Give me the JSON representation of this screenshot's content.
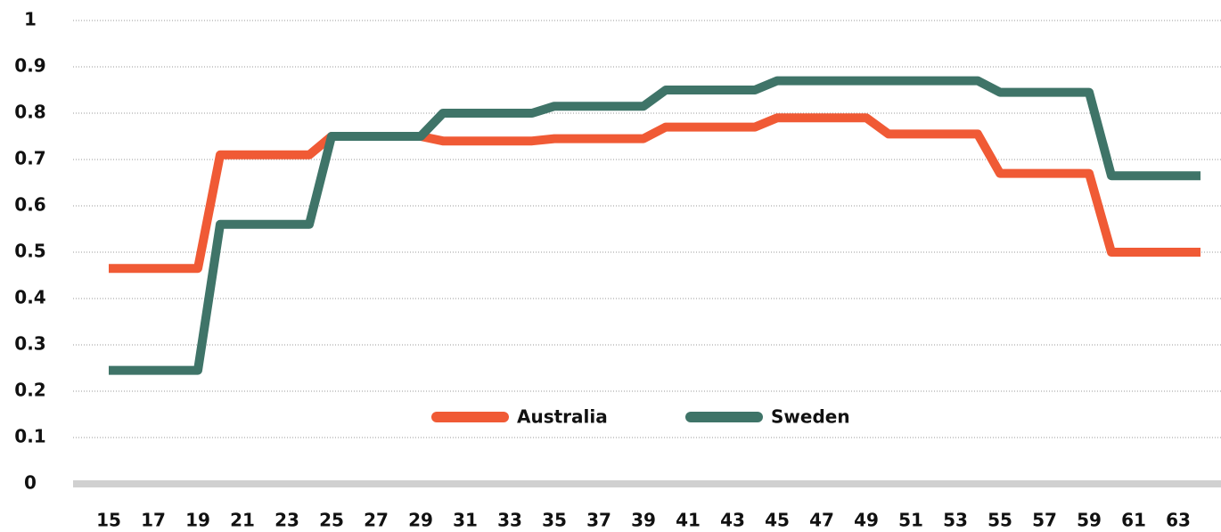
{
  "chart_data": {
    "type": "line",
    "x": [
      15,
      16,
      17,
      18,
      19,
      20,
      21,
      22,
      23,
      24,
      25,
      26,
      27,
      28,
      29,
      30,
      31,
      32,
      33,
      34,
      35,
      36,
      37,
      38,
      39,
      40,
      41,
      42,
      43,
      44,
      45,
      46,
      47,
      48,
      49,
      50,
      51,
      52,
      53,
      54,
      55,
      56,
      57,
      58,
      59,
      60,
      61,
      62,
      63,
      64
    ],
    "series": [
      {
        "name": "Australia",
        "color": "#f05a35",
        "values": [
          0.465,
          0.465,
          0.465,
          0.465,
          0.465,
          0.71,
          0.71,
          0.71,
          0.71,
          0.71,
          0.75,
          0.75,
          0.75,
          0.75,
          0.75,
          0.74,
          0.74,
          0.74,
          0.74,
          0.74,
          0.745,
          0.745,
          0.745,
          0.745,
          0.745,
          0.77,
          0.77,
          0.77,
          0.77,
          0.77,
          0.79,
          0.79,
          0.79,
          0.79,
          0.79,
          0.755,
          0.755,
          0.755,
          0.755,
          0.755,
          0.67,
          0.67,
          0.67,
          0.67,
          0.67,
          0.5,
          0.5,
          0.5,
          0.5,
          0.5
        ]
      },
      {
        "name": "Sweden",
        "color": "#3f7468",
        "values": [
          0.245,
          0.245,
          0.245,
          0.245,
          0.245,
          0.56,
          0.56,
          0.56,
          0.56,
          0.56,
          0.75,
          0.75,
          0.75,
          0.75,
          0.75,
          0.8,
          0.8,
          0.8,
          0.8,
          0.8,
          0.815,
          0.815,
          0.815,
          0.815,
          0.815,
          0.85,
          0.85,
          0.85,
          0.85,
          0.85,
          0.87,
          0.87,
          0.87,
          0.87,
          0.87,
          0.87,
          0.87,
          0.87,
          0.87,
          0.87,
          0.845,
          0.845,
          0.845,
          0.845,
          0.845,
          0.665,
          0.665,
          0.665,
          0.665,
          0.665
        ]
      }
    ],
    "xlim": [
      15,
      64
    ],
    "xticks": [
      15,
      17,
      19,
      21,
      23,
      25,
      27,
      29,
      31,
      33,
      35,
      37,
      39,
      41,
      43,
      45,
      47,
      49,
      51,
      53,
      55,
      57,
      59,
      61,
      63
    ],
    "ylim": [
      0,
      1
    ],
    "yticks": [
      0,
      0.1,
      0.2,
      0.3,
      0.4,
      0.5,
      0.6,
      0.7,
      0.8,
      0.9,
      1
    ],
    "grid": true,
    "legend": "bottom"
  }
}
